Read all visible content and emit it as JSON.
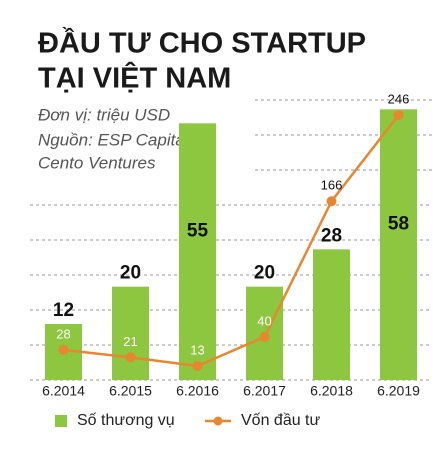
{
  "chart_data": {
    "type": "combo",
    "title": [
      "ĐẦU TƯ CHO STARTUP",
      "TẠI VIỆT NAM"
    ],
    "subtitle": "Đơn vị: triệu USD",
    "source": [
      "Nguồn: ESP Capital và",
      "Cento Ventures"
    ],
    "categories": [
      "6.2014",
      "6.2015",
      "6.2016",
      "6.2017",
      "6.2018",
      "6.2019"
    ],
    "series": [
      {
        "name": "Số thương vụ",
        "type": "bar",
        "color": "#8dc63f",
        "values": [
          12,
          20,
          55,
          20,
          28,
          58
        ]
      },
      {
        "name": "Vốn đầu tư",
        "type": "line",
        "axis": "y2",
        "color": "#e8872f",
        "values": [
          28,
          21,
          13,
          40,
          166,
          246
        ]
      }
    ],
    "ylim": [
      0,
      60
    ],
    "y2lim": [
      0,
      260
    ],
    "grid": true,
    "legend": "bottom"
  }
}
